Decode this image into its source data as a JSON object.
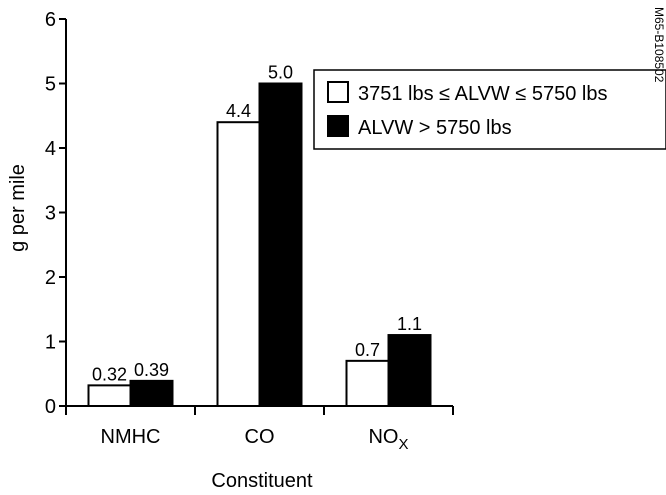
{
  "chart_data": {
    "type": "bar",
    "categories": [
      "NMHC",
      "CO",
      "NOx"
    ],
    "category_display": [
      {
        "main": "NMHC",
        "sub": ""
      },
      {
        "main": "CO",
        "sub": ""
      },
      {
        "main": "NO",
        "sub": "X"
      }
    ],
    "series": [
      {
        "name": "3751 lbs ≤ ALVW ≤ 5750 lbs",
        "values": [
          0.32,
          4.4,
          0.7
        ],
        "labels": [
          "0.32",
          "4.4",
          "0.7"
        ],
        "fill": "#ffffff"
      },
      {
        "name": "ALVW > 5750 lbs",
        "values": [
          0.39,
          5.0,
          1.1
        ],
        "labels": [
          "0.39",
          "5.0",
          "1.1"
        ],
        "fill": "#000000"
      }
    ],
    "xlabel": "Constituent",
    "ylabel": "g per mile",
    "ylim": [
      0,
      6
    ],
    "yticks": [
      "0",
      "1",
      "2",
      "3",
      "4",
      "5",
      "6"
    ],
    "legend_position": "right",
    "grid": false
  },
  "watermark": "M65-B108502"
}
